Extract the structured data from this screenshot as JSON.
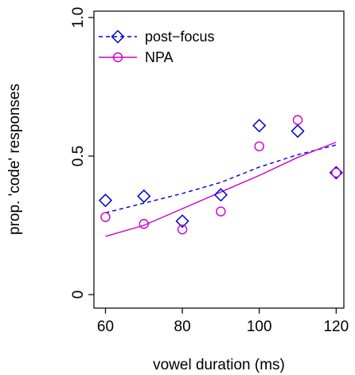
{
  "chart_data": {
    "type": "scatter",
    "title": "",
    "xlabel": "vowel duration (ms)",
    "ylabel": "prop. 'code' responses",
    "xlim": [
      57,
      122
    ],
    "ylim": [
      0,
      1
    ],
    "x_ticks": [
      60,
      80,
      100,
      120
    ],
    "x_tick_labels": [
      "60",
      "80",
      "100",
      "120"
    ],
    "y_ticks": [
      0,
      0.5,
      1
    ],
    "y_tick_labels": [
      "0",
      "0.5",
      "1.0"
    ],
    "grid": false,
    "legend_position": "top-left",
    "series": [
      {
        "name": "post−focus",
        "marker": "diamond",
        "color": "#0000cc",
        "line_style": "dashed",
        "points": [
          {
            "x": 60,
            "y": 0.34
          },
          {
            "x": 70,
            "y": 0.355
          },
          {
            "x": 80,
            "y": 0.265
          },
          {
            "x": 90,
            "y": 0.36
          },
          {
            "x": 100,
            "y": 0.61
          },
          {
            "x": 110,
            "y": 0.59
          },
          {
            "x": 120,
            "y": 0.44
          }
        ],
        "fit_curve": [
          {
            "x": 60,
            "y": 0.295
          },
          {
            "x": 70,
            "y": 0.33
          },
          {
            "x": 80,
            "y": 0.365
          },
          {
            "x": 90,
            "y": 0.405
          },
          {
            "x": 100,
            "y": 0.46
          },
          {
            "x": 110,
            "y": 0.505
          },
          {
            "x": 120,
            "y": 0.54
          }
        ]
      },
      {
        "name": "NPA",
        "marker": "circle",
        "color": "#cc00cc",
        "line_style": "solid",
        "points": [
          {
            "x": 60,
            "y": 0.28
          },
          {
            "x": 70,
            "y": 0.255
          },
          {
            "x": 80,
            "y": 0.235
          },
          {
            "x": 90,
            "y": 0.3
          },
          {
            "x": 100,
            "y": 0.535
          },
          {
            "x": 110,
            "y": 0.63
          },
          {
            "x": 120,
            "y": 0.44
          }
        ],
        "fit_curve": [
          {
            "x": 60,
            "y": 0.21
          },
          {
            "x": 70,
            "y": 0.25
          },
          {
            "x": 80,
            "y": 0.31
          },
          {
            "x": 90,
            "y": 0.37
          },
          {
            "x": 100,
            "y": 0.43
          },
          {
            "x": 110,
            "y": 0.495
          },
          {
            "x": 120,
            "y": 0.55
          }
        ]
      }
    ]
  }
}
